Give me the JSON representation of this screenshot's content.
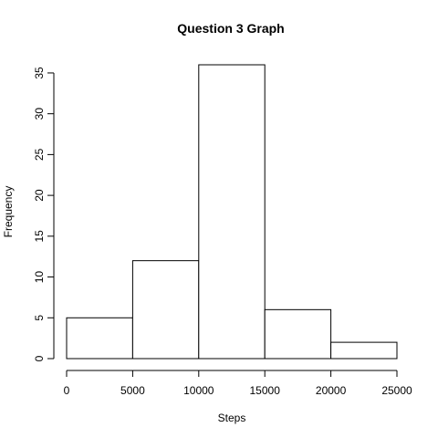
{
  "chart_data": {
    "type": "histogram",
    "title": "Question 3 Graph",
    "xlabel": "Steps",
    "ylabel": "Frequency",
    "bins": [
      {
        "start": 0,
        "end": 5000,
        "count": 5
      },
      {
        "start": 5000,
        "end": 10000,
        "count": 12
      },
      {
        "start": 10000,
        "end": 15000,
        "count": 36
      },
      {
        "start": 15000,
        "end": 20000,
        "count": 6
      },
      {
        "start": 20000,
        "end": 25000,
        "count": 2
      }
    ],
    "x_ticks": [
      0,
      5000,
      10000,
      15000,
      20000,
      25000
    ],
    "y_ticks": [
      0,
      5,
      10,
      15,
      20,
      25,
      30,
      35
    ],
    "xlim": [
      0,
      25000
    ],
    "ylim": [
      0,
      36
    ],
    "grid": false,
    "bar_fill": "#ffffff",
    "bar_stroke": "#000000"
  }
}
